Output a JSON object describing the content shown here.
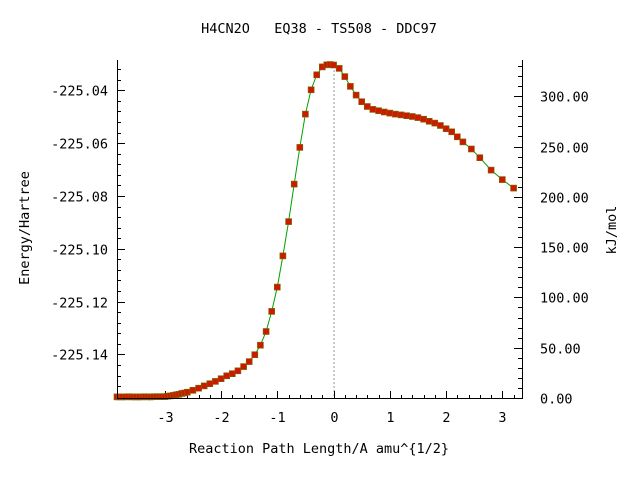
{
  "chart_data": {
    "type": "line",
    "title": "H4CN2O   EQ38 - TS508 - DDC97",
    "xlabel": "Reaction Path Length/A amu^{1/2}",
    "ylabel": "Energy/Hartree",
    "y2label": "kJ/mol",
    "xlim": [
      -3.85,
      3.35
    ],
    "ylim": [
      -225.1565,
      -225.0285
    ],
    "y2lim": [
      0,
      336
    ],
    "x_ticks": [
      -3,
      -2,
      -1,
      0,
      1,
      2,
      3
    ],
    "x_tick_labels": [
      "-3",
      "-2",
      "-1",
      "0",
      "1",
      "2",
      "3"
    ],
    "y_ticks": [
      -225.04,
      -225.06,
      -225.08,
      -225.1,
      -225.12,
      -225.14
    ],
    "y_tick_labels": [
      "-225.04",
      "-225.06",
      "-225.08",
      "-225.10",
      "-225.12",
      "-225.14"
    ],
    "y2_ticks": [
      0,
      50,
      100,
      150,
      200,
      250,
      300
    ],
    "y2_tick_labels": [
      "0.00",
      "50.00",
      "100.00",
      "150.00",
      "200.00",
      "250.00",
      "300.00"
    ],
    "zero_marker_x": 0,
    "grid": false,
    "colors": {
      "line": "#00a000",
      "marker": "#cc1a00",
      "zero_line": "#999999"
    },
    "series": [
      {
        "x": [
          -3.85,
          -3.8,
          -3.75,
          -3.7,
          -3.65,
          -3.6,
          -3.55,
          -3.5,
          -3.45,
          -3.4,
          -3.35,
          -3.3,
          -3.25,
          -3.2,
          -3.15,
          -3.1,
          -3.05,
          -3.0,
          -2.95,
          -2.9,
          -2.85,
          -2.8,
          -2.75,
          -2.7,
          -2.65,
          -2.6,
          -2.5,
          -2.4,
          -2.3,
          -2.2,
          -2.1,
          -2.0,
          -1.9,
          -1.8,
          -1.7,
          -1.6,
          -1.5,
          -1.4,
          -1.3,
          -1.2,
          -1.1,
          -1.0,
          -0.9,
          -0.8,
          -0.7,
          -0.6,
          -0.5,
          -0.4,
          -0.3,
          -0.2,
          -0.12,
          -0.06,
          0.0,
          0.1,
          0.2,
          0.3,
          0.4,
          0.5,
          0.6,
          0.7,
          0.8,
          0.9,
          1.0,
          1.1,
          1.2,
          1.3,
          1.4,
          1.5,
          1.6,
          1.7,
          1.8,
          1.9,
          2.0,
          2.1,
          2.2,
          2.3,
          2.45,
          2.6,
          2.8,
          3.0,
          3.2
        ],
        "y": [
          -225.1561,
          -225.1561,
          -225.1561,
          -225.1561,
          -225.156,
          -225.1561,
          -225.1561,
          -225.1561,
          -225.1561,
          -225.1561,
          -225.156,
          -225.1561,
          -225.1561,
          -225.156,
          -225.156,
          -225.156,
          -225.156,
          -225.156,
          -225.1558,
          -225.1557,
          -225.1555,
          -225.1553,
          -225.1551,
          -225.1548,
          -225.1546,
          -225.1543,
          -225.1536,
          -225.1528,
          -225.1519,
          -225.1511,
          -225.1502,
          -225.1492,
          -225.1481,
          -225.1473,
          -225.1462,
          -225.1446,
          -225.1427,
          -225.1401,
          -225.1365,
          -225.1313,
          -225.1237,
          -225.1145,
          -225.1027,
          -225.0897,
          -225.0755,
          -225.0616,
          -225.049,
          -225.0398,
          -225.0341,
          -225.0311,
          -225.0303,
          -225.0302,
          -225.0304,
          -225.0317,
          -225.0348,
          -225.0385,
          -225.0418,
          -225.0443,
          -225.0461,
          -225.0472,
          -225.0477,
          -225.0482,
          -225.0486,
          -225.049,
          -225.0493,
          -225.0496,
          -225.0499,
          -225.0503,
          -225.0509,
          -225.0517,
          -225.0524,
          -225.0533,
          -225.0545,
          -225.0557,
          -225.0576,
          -225.0595,
          -225.0622,
          -225.0655,
          -225.0702,
          -225.0738,
          -225.077
        ]
      }
    ]
  }
}
